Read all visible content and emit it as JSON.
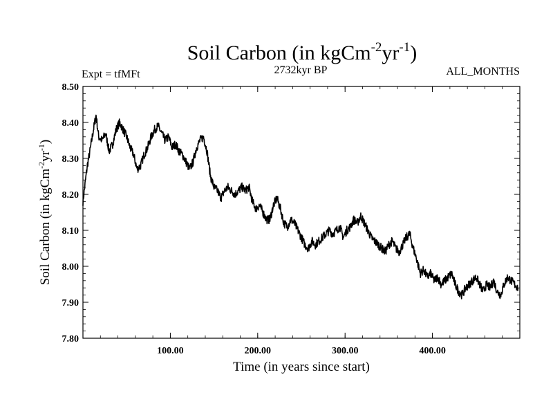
{
  "chart_data": {
    "type": "line",
    "title_base": "Soil Carbon (in kgCm",
    "title_exp1": "-2",
    "title_mid": "yr",
    "title_exp2": "-1",
    "title_end": ")",
    "subtitle_left": "Expt = tfMFt",
    "subtitle_center": "2732kyr BP",
    "subtitle_right": "ALL_MONTHS",
    "xlabel": "Time (in years since start)",
    "ylabel_base": "Soil Carbon (in kgCm",
    "ylabel_exp1": "-2",
    "ylabel_mid": "yr",
    "ylabel_exp2": "-1",
    "ylabel_end": ")",
    "xlim": [
      0,
      500
    ],
    "ylim": [
      7.8,
      8.5
    ],
    "xticks": [
      {
        "value": 100,
        "label": "100.00"
      },
      {
        "value": 200,
        "label": "200.00"
      },
      {
        "value": 300,
        "label": "300.00"
      },
      {
        "value": 400,
        "label": "400.00"
      }
    ],
    "yticks": [
      {
        "value": 7.8,
        "label": "7.80"
      },
      {
        "value": 7.9,
        "label": "7.90"
      },
      {
        "value": 8.0,
        "label": "8.00"
      },
      {
        "value": 8.1,
        "label": "8.10"
      },
      {
        "value": 8.2,
        "label": "8.20"
      },
      {
        "value": 8.3,
        "label": "8.30"
      },
      {
        "value": 8.4,
        "label": "8.40"
      },
      {
        "value": 8.5,
        "label": "8.50"
      }
    ],
    "series": [
      {
        "name": "Soil Carbon",
        "color": "#000000",
        "x": [
          0,
          2,
          5,
          8,
          12,
          15,
          18,
          22,
          26,
          30,
          34,
          38,
          42,
          46,
          50,
          54,
          58,
          62,
          66,
          70,
          74,
          78,
          82,
          86,
          90,
          94,
          98,
          102,
          106,
          110,
          114,
          118,
          122,
          126,
          130,
          134,
          138,
          142,
          146,
          150,
          154,
          158,
          162,
          166,
          170,
          174,
          178,
          182,
          186,
          190,
          194,
          198,
          202,
          206,
          210,
          214,
          218,
          222,
          226,
          230,
          234,
          238,
          242,
          246,
          250,
          254,
          258,
          262,
          266,
          270,
          274,
          278,
          282,
          286,
          290,
          294,
          298,
          302,
          306,
          310,
          314,
          318,
          322,
          326,
          330,
          334,
          338,
          342,
          346,
          350,
          354,
          358,
          362,
          366,
          370,
          374,
          378,
          382,
          386,
          390,
          394,
          398,
          402,
          406,
          410,
          414,
          418,
          422,
          426,
          430,
          434,
          438,
          442,
          446,
          450,
          454,
          458,
          462,
          466,
          470,
          474,
          478,
          482,
          486,
          490,
          494,
          498
        ],
        "y": [
          8.18,
          8.22,
          8.28,
          8.32,
          8.38,
          8.42,
          8.36,
          8.35,
          8.37,
          8.32,
          8.34,
          8.38,
          8.4,
          8.38,
          8.36,
          8.33,
          8.31,
          8.27,
          8.28,
          8.31,
          8.33,
          8.36,
          8.38,
          8.39,
          8.37,
          8.35,
          8.36,
          8.33,
          8.34,
          8.32,
          8.31,
          8.29,
          8.27,
          8.29,
          8.33,
          8.35,
          8.36,
          8.32,
          8.25,
          8.22,
          8.21,
          8.19,
          8.21,
          8.22,
          8.21,
          8.2,
          8.21,
          8.22,
          8.21,
          8.22,
          8.18,
          8.16,
          8.17,
          8.15,
          8.13,
          8.13,
          8.17,
          8.19,
          8.16,
          8.12,
          8.11,
          8.13,
          8.12,
          8.1,
          8.08,
          8.06,
          8.05,
          8.07,
          8.06,
          8.07,
          8.08,
          8.09,
          8.1,
          8.09,
          8.1,
          8.11,
          8.08,
          8.1,
          8.11,
          8.13,
          8.12,
          8.14,
          8.12,
          8.1,
          8.08,
          8.07,
          8.06,
          8.05,
          8.04,
          8.06,
          8.07,
          8.05,
          8.04,
          8.06,
          8.08,
          8.09,
          8.05,
          8.02,
          7.98,
          7.99,
          7.97,
          7.98,
          7.96,
          7.97,
          7.95,
          7.96,
          7.97,
          7.98,
          7.95,
          7.93,
          7.92,
          7.94,
          7.95,
          7.96,
          7.97,
          7.95,
          7.93,
          7.95,
          7.94,
          7.96,
          7.93,
          7.92,
          7.95,
          7.97,
          7.96,
          7.95,
          7.94
        ]
      }
    ]
  }
}
